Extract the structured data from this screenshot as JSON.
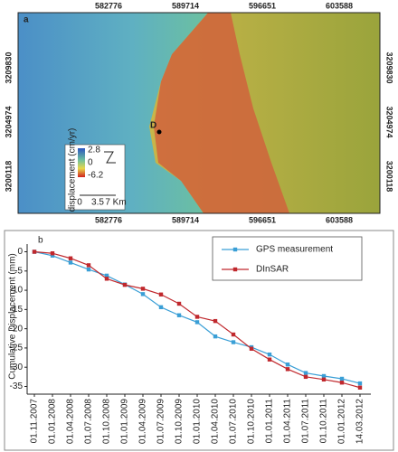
{
  "map": {
    "panel_label": "a",
    "top_ticks": [
      "582776",
      "589714",
      "596651",
      "603588"
    ],
    "bottom_ticks": [
      "582776",
      "589714",
      "596651",
      "603588"
    ],
    "left_ticks": [
      "3209830",
      "3204974",
      "3200118"
    ],
    "right_ticks": [
      "3209830",
      "3204974",
      "3200118"
    ],
    "point_label": "D",
    "legend": {
      "title": "displacement (cm/yr)",
      "max": "2.8",
      "mid": "0",
      "min": "-6.2"
    },
    "scale_labels": [
      "0",
      "3.5",
      "7 Km"
    ]
  },
  "chart_data": {
    "type": "line",
    "panel_label": "b",
    "y_label": "Cumulative Displacement (mm)",
    "categories": [
      "01.11.2007",
      "01.01.2008",
      "01.04.2008",
      "01.07.2008",
      "01.10.2008",
      "01.01.2009",
      "01.04.2009",
      "01.07.2009",
      "01.10.2009",
      "01.01.2010",
      "01.04.2010",
      "01.07.2010",
      "01.10.2010",
      "01.01.2011",
      "01.04.2011",
      "01.07.2011",
      "01.10.2011",
      "01.01.2012",
      "14.03.2012"
    ],
    "series": [
      {
        "name": "GPS measurement",
        "color": "#3a9fd6",
        "values": [
          0,
          -1,
          -2.8,
          -4.6,
          -6.2,
          -8.5,
          -11,
          -14.4,
          -16.5,
          -18.3,
          -22,
          -23.5,
          -24.8,
          -26.7,
          -29.3,
          -31.5,
          -32.3,
          -33,
          -34.2
        ]
      },
      {
        "name": "DInSAR",
        "color": "#c0282d",
        "values": [
          0,
          -0.4,
          -1.7,
          -3.5,
          -7,
          -8.6,
          -9.6,
          -11.1,
          -13.5,
          -16.9,
          -18,
          -21.5,
          -25.2,
          -28,
          -30.5,
          -32.5,
          -33.2,
          -34,
          -35.3
        ]
      }
    ],
    "ylim": [
      -37,
      2
    ],
    "yticks": [
      0,
      -5,
      -10,
      -15,
      -20,
      -25,
      -30,
      -35
    ],
    "legend": "top-right"
  }
}
